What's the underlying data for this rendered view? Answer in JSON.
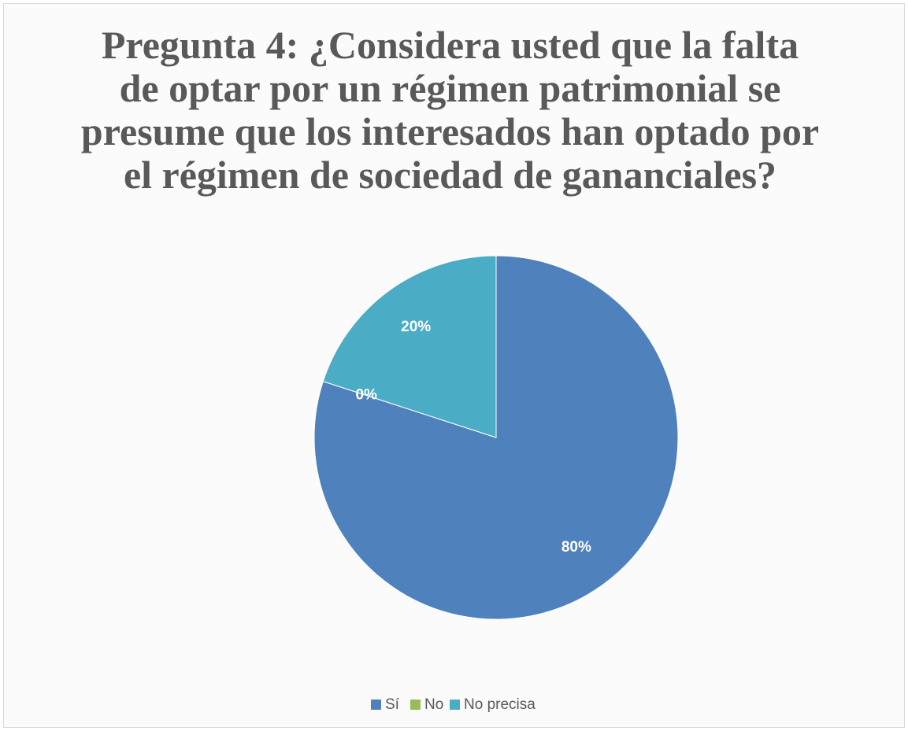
{
  "chart_data": {
    "type": "pie",
    "title": "Pregunta 4: ¿Considera usted que la falta de optar por un régimen patrimonial se presume que los interesados han optado por el régimen de sociedad de gananciales?",
    "categories": [
      "Sí",
      "No",
      "No precisa"
    ],
    "values": [
      80,
      0,
      20
    ],
    "value_labels": [
      "80%",
      "0%",
      "20%"
    ],
    "colors": [
      "#4f81bd",
      "#9bbb59",
      "#4bacc6"
    ],
    "legend": "bottom"
  }
}
